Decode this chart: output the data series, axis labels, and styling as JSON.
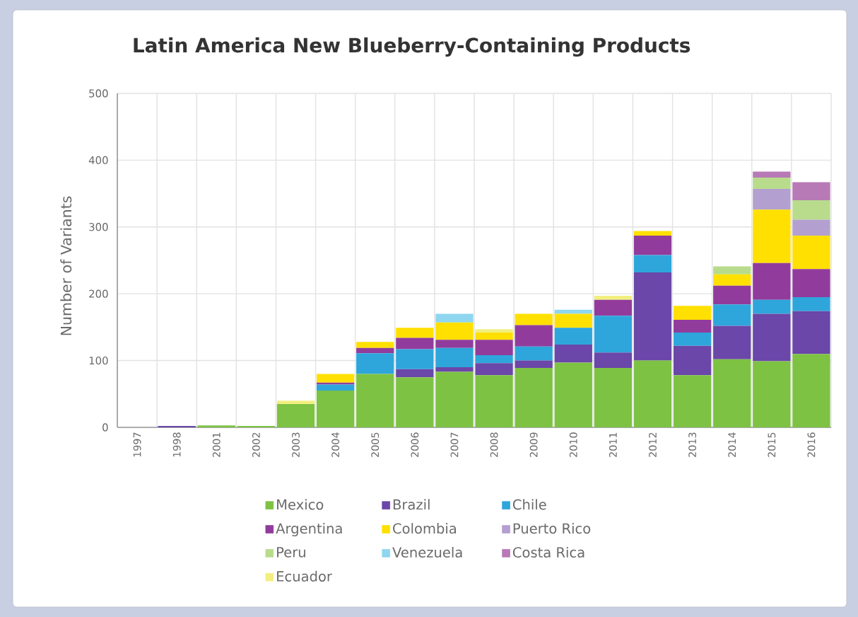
{
  "chart_data": {
    "type": "bar",
    "stacked": true,
    "title": "Latin America New Blueberry-Containing Products",
    "ylabel": "Number of Variants",
    "categories": [
      "1997",
      "1998",
      "2001",
      "2002",
      "2003",
      "2004",
      "2005",
      "2006",
      "2007",
      "2008",
      "2009",
      "2010",
      "2011",
      "2012",
      "2013",
      "2014",
      "2015",
      "2016"
    ],
    "ylim": [
      0,
      500
    ],
    "yticks": [
      0,
      100,
      200,
      300,
      400,
      500
    ],
    "grid": true,
    "legend": "bottom",
    "series": [
      {
        "name": "Mexico",
        "color": "#7dc243",
        "values": [
          null,
          null,
          3,
          2,
          35,
          55,
          80,
          75,
          83,
          78,
          89,
          97,
          89,
          100,
          78,
          102,
          99,
          110
        ]
      },
      {
        "name": "Brazil",
        "color": "#6a47a8",
        "values": [
          null,
          2,
          null,
          null,
          null,
          null,
          null,
          12,
          7,
          18,
          11,
          27,
          23,
          132,
          44,
          50,
          71,
          64
        ]
      },
      {
        "name": "Chile",
        "color": "#2ea6dc",
        "values": [
          null,
          null,
          null,
          null,
          null,
          9,
          31,
          30,
          29,
          12,
          21,
          25,
          55,
          26,
          20,
          32,
          21,
          21
        ]
      },
      {
        "name": "Argentina",
        "color": "#913c9c",
        "values": [
          null,
          null,
          null,
          null,
          null,
          3,
          8,
          17,
          12,
          23,
          32,
          null,
          24,
          29,
          19,
          28,
          55,
          42
        ]
      },
      {
        "name": "Colombia",
        "color": "#ffe000",
        "values": [
          null,
          null,
          null,
          null,
          null,
          13,
          9,
          15,
          26,
          11,
          17,
          21,
          null,
          7,
          21,
          17,
          80,
          50
        ]
      },
      {
        "name": "Puerto Rico",
        "color": "#b3a0d0",
        "values": [
          null,
          null,
          null,
          null,
          null,
          null,
          null,
          null,
          null,
          null,
          null,
          null,
          null,
          null,
          null,
          null,
          31,
          24
        ]
      },
      {
        "name": "Peru",
        "color": "#b8dc8c",
        "values": [
          null,
          null,
          null,
          null,
          null,
          null,
          null,
          null,
          null,
          null,
          null,
          null,
          null,
          null,
          null,
          12,
          17,
          29
        ]
      },
      {
        "name": "Venezuela",
        "color": "#8fd6f0",
        "values": [
          null,
          null,
          null,
          null,
          null,
          null,
          null,
          null,
          13,
          null,
          null,
          6,
          null,
          null,
          null,
          null,
          null,
          null
        ]
      },
      {
        "name": "Costa Rica",
        "color": "#b87ab6",
        "values": [
          null,
          null,
          null,
          null,
          null,
          null,
          null,
          null,
          null,
          null,
          null,
          null,
          null,
          null,
          null,
          null,
          9,
          27
        ]
      },
      {
        "name": "Ecuador",
        "color": "#f2ef80",
        "values": [
          null,
          null,
          null,
          null,
          5,
          null,
          null,
          null,
          null,
          5,
          null,
          null,
          6,
          null,
          null,
          null,
          null,
          null
        ]
      }
    ]
  }
}
